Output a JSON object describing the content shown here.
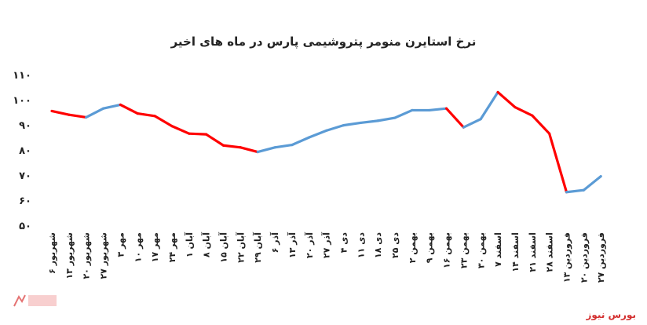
{
  "title": "نرخ استایرن منومر پتروشیمی پارس در ماه های اخیر",
  "source": "بورس نیوز",
  "colors": {
    "up": "#5b9bd5",
    "down": "#ff0000",
    "axis_text": "#222222",
    "source": "#d32f2f"
  },
  "chart_data": {
    "type": "line",
    "title": "نرخ استایرن منومر پتروشیمی پارس در ماه های اخیر",
    "xlabel": "",
    "ylabel": "",
    "ylim": [
      50,
      110
    ],
    "yticks": [
      "۵۰",
      "۶۰",
      "۷۰",
      "۸۰",
      "۹۰",
      "۱۰۰",
      "۱۱۰"
    ],
    "grid": false,
    "categories": [
      "۶ شهریور",
      "۱۳ شهریور",
      "۲۰ شهریور",
      "۲۷ شهریور",
      "۳ مهر",
      "۱۰ مهر",
      "۱۷ مهر",
      "۲۴ مهر",
      "۱ آبان",
      "۸ آبان",
      "۱۵ آبان",
      "۲۲ آبان",
      "۲۹ آبان",
      "۶ آذر",
      "۱۳ آذر",
      "۲۰ آذر",
      "۲۷ آذر",
      "۴ دی",
      "۱۱ دی",
      "۱۸ دی",
      "۲۵ دی",
      "۲ بهمن",
      "۹ بهمن",
      "۱۶ بهمن",
      "۲۳ بهمن",
      "۳۰ بهمن",
      "۷ اسفند",
      "۱۴ اسفند",
      "۲۱ اسفند",
      "۲۸ اسفند",
      "۱۳ فروردین",
      "۲۰ فروردین",
      "۲۷ فروردین"
    ],
    "values": [
      95.5,
      94,
      93,
      96.5,
      98,
      94.5,
      93.5,
      89.5,
      86.5,
      86.2,
      81.8,
      81,
      79.2,
      81,
      82,
      85,
      87.7,
      89.8,
      90.8,
      91.6,
      92.8,
      95.8,
      95.8,
      96.5,
      89,
      92.3,
      103,
      97,
      93.7,
      86.5,
      63.2,
      64,
      69.5
    ]
  }
}
